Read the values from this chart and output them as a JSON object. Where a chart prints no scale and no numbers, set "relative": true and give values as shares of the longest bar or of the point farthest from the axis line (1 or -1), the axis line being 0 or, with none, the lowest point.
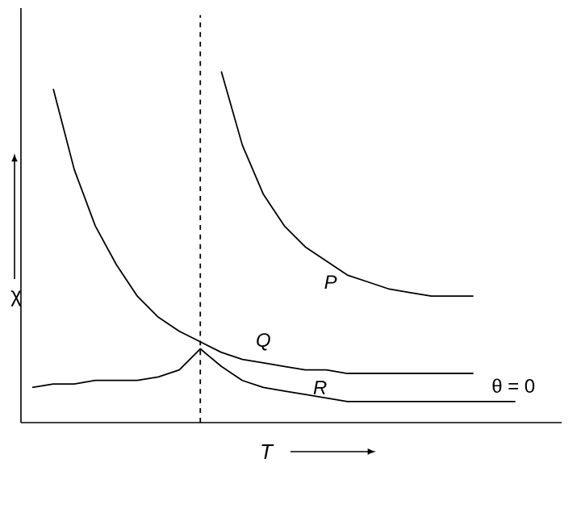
{
  "chart_data": {
    "type": "line",
    "xlabel": "T",
    "ylabel": "χ",
    "relative": true,
    "categories": [
      null,
      null,
      null,
      null,
      null,
      null,
      null,
      null,
      null,
      null,
      null,
      null,
      null,
      null,
      null,
      null,
      null,
      null,
      null,
      null,
      null,
      null,
      null,
      null
    ],
    "series": [
      {
        "name": "P",
        "color": "#000000",
        "values": [
          null,
          null,
          null,
          null,
          null,
          null,
          null,
          null,
          null,
          1,
          0.79,
          0.65,
          0.56,
          0.5,
          0.46,
          0.42,
          0.4,
          0.38,
          0.37,
          0.36,
          0.36,
          0.36,
          null,
          null
        ]
      },
      {
        "name": "Q",
        "color": "#000000",
        "values": [
          null,
          0.95,
          0.72,
          0.56,
          0.45,
          0.36,
          0.3,
          0.26,
          0.23,
          0.2,
          0.18,
          0.17,
          0.16,
          0.15,
          0.15,
          0.14,
          0.14,
          0.14,
          0.14,
          0.14,
          0.14,
          0.14,
          null,
          null
        ]
      },
      {
        "name": "R",
        "color": "#000000",
        "values": [
          0.1,
          0.11,
          0.11,
          0.12,
          0.12,
          0.12,
          0.13,
          0.15,
          0.21,
          0.16,
          0.12,
          0.1,
          0.09,
          0.08,
          0.07,
          0.06,
          0.06,
          0.06,
          0.06,
          0.06,
          0.06,
          0.06,
          0.06,
          0.06
        ]
      }
    ],
    "annotations": [
      "θ = 0"
    ],
    "marker": "none",
    "line_style": "solid"
  }
}
